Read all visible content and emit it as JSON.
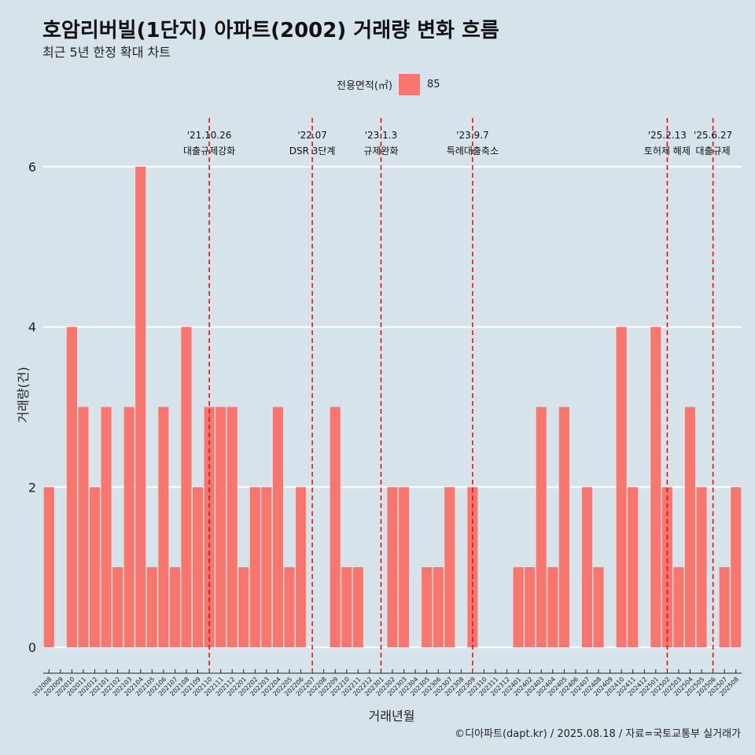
{
  "title": "호암리버빌(1단지) 아파트(2002) 거래량 변화 흐름",
  "subtitle": "최근 5년 한정 확대 차트",
  "caption": "©디아파트(dapt.kr) / 2025.08.18 / 자료=국토교통부 실거래가",
  "legend": {
    "title": "전용면적(㎡)",
    "items": [
      {
        "label": "85",
        "color": "#f8766d"
      }
    ]
  },
  "colors": {
    "bar": "#f8766d",
    "background": "#d6e3ea",
    "grid": "#ffffff",
    "event_line": "#ff0000"
  },
  "chart_data": {
    "type": "bar",
    "xlabel": "거래년월",
    "ylabel": "거래량(건)",
    "ylim": [
      0,
      6
    ],
    "yticks": [
      0,
      2,
      4,
      6
    ],
    "grid": true,
    "legend_position": "top",
    "categories": [
      "202008",
      "202009",
      "202010",
      "202011",
      "202012",
      "202101",
      "202102",
      "202103",
      "202104",
      "202105",
      "202106",
      "202107",
      "202108",
      "202109",
      "202110",
      "202111",
      "202112",
      "202201",
      "202202",
      "202203",
      "202204",
      "202205",
      "202206",
      "202207",
      "202208",
      "202209",
      "202210",
      "202211",
      "202212",
      "202301",
      "202302",
      "202303",
      "202304",
      "202305",
      "202306",
      "202307",
      "202308",
      "202309",
      "202310",
      "202311",
      "202312",
      "202401",
      "202402",
      "202403",
      "202404",
      "202405",
      "202406",
      "202407",
      "202408",
      "202409",
      "202410",
      "202411",
      "202412",
      "202501",
      "202502",
      "202503",
      "202504",
      "202505",
      "202506",
      "202507",
      "202508"
    ],
    "series": [
      {
        "name": "85",
        "values": [
          2,
          0,
          4,
          3,
          2,
          3,
          1,
          3,
          6,
          1,
          3,
          1,
          4,
          2,
          3,
          3,
          3,
          1,
          2,
          2,
          3,
          1,
          2,
          0,
          0,
          3,
          1,
          1,
          0,
          0,
          2,
          2,
          0,
          1,
          1,
          2,
          0,
          2,
          0,
          0,
          0,
          1,
          1,
          3,
          1,
          3,
          0,
          2,
          1,
          0,
          4,
          2,
          0,
          4,
          2,
          1,
          3,
          2,
          0,
          1,
          2
        ]
      }
    ],
    "annotations": [
      {
        "date": "'21.10.26",
        "label": "대출규제강화",
        "category": "202110"
      },
      {
        "date": "'22.07",
        "label": "DSR 3단계",
        "category": "202207"
      },
      {
        "date": "'23.1.3",
        "label": "규제완화",
        "category": "202301"
      },
      {
        "date": "'23.9.7",
        "label": "특례대출축소",
        "category": "202309"
      },
      {
        "date": "'25.2.13",
        "label": "토허제 해제",
        "category": "202502"
      },
      {
        "date": "'25.6.27",
        "label": "대출규제",
        "category": "202506"
      }
    ]
  }
}
